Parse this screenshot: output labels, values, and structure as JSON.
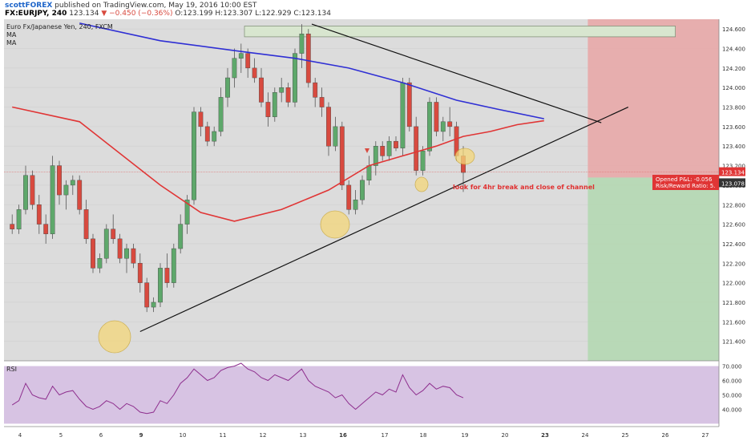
{
  "header": {
    "user": "scottFOREX",
    "published": "published on TradingView.com, May 19, 2016 10:00 EST",
    "symbol": "FX:EURJPY, 240",
    "last": "123.134",
    "change": "▼ −0.450 (−0.36%)",
    "ohlc": "O:123.199 H:123.307 L:122.929 C:123.134"
  },
  "legend": {
    "title": "Euro Fx/Japanese Yen, 240, FXCM",
    "ma1": "MA",
    "ma2": "MA"
  },
  "annotation": "look for 4hr break and close of channel",
  "position_labels": {
    "pnl": "Opened P&L: -0.056",
    "rr": "Risk/Reward Ratio: 5."
  },
  "price_tags": {
    "current": "123.134",
    "entry": "123.078"
  },
  "rsi_label": "RSI",
  "colors": {
    "up": "#5ea86b",
    "down": "#d84a3f",
    "ma_fast": "#e03535",
    "ma_slow": "#2f2fd4",
    "rsi": "#8e2f8e",
    "stop_zone": "#e8a9a9",
    "target_zone": "#b4d8b2"
  },
  "chart_data": {
    "type": "candlestick",
    "y_axis": {
      "min": 121.2,
      "max": 124.7,
      "ticks": [
        "121.400",
        "121.600",
        "121.800",
        "122.000",
        "122.200",
        "122.400",
        "122.600",
        "122.800",
        "123.000",
        "123.200",
        "123.400",
        "123.600",
        "123.800",
        "124.000",
        "124.200",
        "124.400",
        "124.600"
      ]
    },
    "x_axis": {
      "ticks": [
        "4",
        "5",
        "6",
        "9",
        "10",
        "11",
        "12",
        "13",
        "16",
        "17",
        "18",
        "19",
        "20",
        "23",
        "24",
        "25",
        "26",
        "27"
      ]
    },
    "rsi_axis": {
      "min": 28,
      "max": 72,
      "ticks": [
        "40.000",
        "50.000",
        "60.000",
        "70.000"
      ]
    },
    "candles": [
      [
        122.6,
        122.7,
        122.5,
        122.55
      ],
      [
        122.55,
        122.8,
        122.5,
        122.75
      ],
      [
        122.75,
        123.2,
        122.7,
        123.1
      ],
      [
        123.1,
        123.15,
        122.75,
        122.8
      ],
      [
        122.8,
        122.9,
        122.5,
        122.6
      ],
      [
        122.6,
        122.7,
        122.4,
        122.5
      ],
      [
        122.5,
        123.3,
        122.45,
        123.2
      ],
      [
        123.2,
        123.25,
        122.8,
        122.9
      ],
      [
        122.9,
        123.05,
        122.75,
        123.0
      ],
      [
        123.0,
        123.1,
        122.9,
        123.05
      ],
      [
        123.05,
        123.1,
        122.7,
        122.75
      ],
      [
        122.75,
        122.85,
        122.4,
        122.45
      ],
      [
        122.45,
        122.5,
        122.1,
        122.15
      ],
      [
        122.15,
        122.3,
        122.1,
        122.25
      ],
      [
        122.25,
        122.6,
        122.2,
        122.55
      ],
      [
        122.55,
        122.7,
        122.4,
        122.45
      ],
      [
        122.45,
        122.5,
        122.2,
        122.25
      ],
      [
        122.25,
        122.4,
        122.1,
        122.35
      ],
      [
        122.35,
        122.4,
        122.15,
        122.2
      ],
      [
        122.2,
        122.3,
        121.9,
        122.0
      ],
      [
        122.0,
        122.05,
        121.7,
        121.75
      ],
      [
        121.75,
        121.85,
        121.7,
        121.8
      ],
      [
        121.8,
        122.2,
        121.75,
        122.15
      ],
      [
        122.15,
        122.3,
        121.95,
        122.0
      ],
      [
        122.0,
        122.4,
        121.95,
        122.35
      ],
      [
        122.35,
        122.7,
        122.3,
        122.6
      ],
      [
        122.6,
        122.9,
        122.5,
        122.85
      ],
      [
        122.85,
        123.8,
        122.8,
        123.75
      ],
      [
        123.75,
        123.8,
        123.5,
        123.6
      ],
      [
        123.6,
        123.65,
        123.4,
        123.45
      ],
      [
        123.45,
        123.6,
        123.4,
        123.55
      ],
      [
        123.55,
        124.0,
        123.5,
        123.9
      ],
      [
        123.9,
        124.2,
        123.8,
        124.1
      ],
      [
        124.1,
        124.4,
        124.0,
        124.3
      ],
      [
        124.3,
        124.45,
        124.15,
        124.35
      ],
      [
        124.35,
        124.4,
        124.1,
        124.2
      ],
      [
        124.2,
        124.3,
        124.05,
        124.1
      ],
      [
        124.1,
        124.2,
        123.8,
        123.85
      ],
      [
        123.85,
        123.95,
        123.6,
        123.7
      ],
      [
        123.7,
        124.0,
        123.65,
        123.95
      ],
      [
        123.95,
        124.1,
        123.85,
        124.0
      ],
      [
        124.0,
        124.05,
        123.8,
        123.85
      ],
      [
        123.85,
        124.4,
        123.8,
        124.35
      ],
      [
        124.35,
        124.65,
        124.2,
        124.55
      ],
      [
        124.55,
        124.6,
        124.0,
        124.05
      ],
      [
        124.05,
        124.1,
        123.8,
        123.9
      ],
      [
        123.9,
        124.0,
        123.7,
        123.8
      ],
      [
        123.8,
        123.85,
        123.3,
        123.4
      ],
      [
        123.4,
        123.7,
        123.35,
        123.6
      ],
      [
        123.6,
        123.65,
        122.95,
        123.0
      ],
      [
        123.0,
        123.05,
        122.7,
        122.75
      ],
      [
        122.75,
        122.95,
        122.7,
        122.85
      ],
      [
        122.85,
        123.1,
        122.8,
        123.05
      ],
      [
        123.05,
        123.3,
        123.0,
        123.2
      ],
      [
        123.2,
        123.45,
        123.1,
        123.4
      ],
      [
        123.4,
        123.45,
        123.25,
        123.3
      ],
      [
        123.3,
        123.5,
        123.25,
        123.45
      ],
      [
        123.45,
        123.5,
        123.35,
        123.38
      ],
      [
        123.38,
        124.1,
        123.3,
        124.05
      ],
      [
        124.05,
        124.1,
        123.55,
        123.6
      ],
      [
        123.6,
        123.7,
        123.1,
        123.15
      ],
      [
        123.15,
        123.4,
        123.1,
        123.35
      ],
      [
        123.35,
        123.9,
        123.3,
        123.85
      ],
      [
        123.85,
        123.9,
        123.5,
        123.55
      ],
      [
        123.55,
        123.7,
        123.45,
        123.65
      ],
      [
        123.65,
        123.8,
        123.5,
        123.6
      ],
      [
        123.6,
        123.65,
        123.25,
        123.3
      ],
      [
        123.3,
        123.4,
        122.93,
        123.13
      ]
    ],
    "ma_fast": [
      [
        0,
        123.8
      ],
      [
        10,
        123.65
      ],
      [
        22,
        123.0
      ],
      [
        28,
        122.72
      ],
      [
        33,
        122.63
      ],
      [
        40,
        122.75
      ],
      [
        47,
        122.95
      ],
      [
        53,
        123.2
      ],
      [
        58,
        123.3
      ],
      [
        63,
        123.4
      ],
      [
        67,
        123.5
      ],
      [
        71,
        123.55
      ],
      [
        75,
        123.62
      ],
      [
        79,
        123.66
      ]
    ],
    "ma_slow": [
      [
        10,
        124.66
      ],
      [
        22,
        124.48
      ],
      [
        34,
        124.37
      ],
      [
        42,
        124.3
      ],
      [
        50,
        124.2
      ],
      [
        58,
        124.05
      ],
      [
        66,
        123.87
      ],
      [
        72,
        123.78
      ],
      [
        79,
        123.68
      ]
    ],
    "rsi": [
      43,
      46,
      58,
      50,
      48,
      47,
      56,
      50,
      52,
      53,
      47,
      42,
      40,
      42,
      46,
      44,
      40,
      44,
      42,
      38,
      37,
      38,
      46,
      44,
      50,
      58,
      62,
      68,
      64,
      60,
      62,
      67,
      69,
      70,
      72,
      68,
      66,
      62,
      60,
      64,
      62,
      60,
      64,
      68,
      60,
      56,
      54,
      52,
      48,
      50,
      44,
      40,
      44,
      48,
      52,
      50,
      54,
      52,
      64,
      55,
      50,
      53,
      58,
      54,
      56,
      55,
      50,
      48
    ],
    "trendlines": [
      {
        "from": [
          19.5,
          121.5
        ],
        "to": [
          92,
          123.8
        ]
      },
      {
        "from": [
          45,
          124.65
        ],
        "to": [
          88,
          123.64
        ]
      }
    ],
    "position": {
      "entry": 123.078,
      "stop": 124.7,
      "target": 121.2,
      "x_start": 86,
      "x_end": 118
    },
    "resistance_box": {
      "x1": 35,
      "x2": 99,
      "y1": 124.63,
      "y2": 124.52
    }
  }
}
